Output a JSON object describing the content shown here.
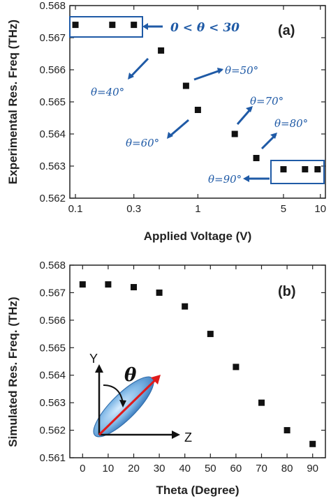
{
  "chart_data": [
    {
      "type": "scatter",
      "panel_label": "(a)",
      "xlabel": "Applied Voltage (V)",
      "ylabel": "Experimental Res. Freq (THz)",
      "xscale": "log",
      "xlim": [
        0.09,
        11
      ],
      "ylim": [
        0.562,
        0.568
      ],
      "xticks": [
        0.1,
        0.3,
        1,
        5,
        10
      ],
      "xtick_labels": [
        "0.1",
        "0.3",
        "1",
        "5",
        "10"
      ],
      "yticks": [
        0.562,
        0.563,
        0.564,
        0.565,
        0.566,
        0.567,
        0.568
      ],
      "ytick_labels": [
        "0.562",
        "0.563",
        "0.564",
        "0.565",
        "0.566",
        "0.567",
        "0.568"
      ],
      "x": [
        0.1,
        0.2,
        0.3,
        0.5,
        0.8,
        1.0,
        2.0,
        3.0,
        5.0,
        7.5,
        9.5
      ],
      "y": [
        0.5674,
        0.5674,
        0.5674,
        0.5666,
        0.5655,
        0.56475,
        0.564,
        0.56325,
        0.5629,
        0.5629,
        0.5629
      ],
      "annotations": [
        "0 < θ < 30",
        "θ=50°",
        "θ=40°",
        "θ=60°",
        "θ=70°",
        "θ=80°",
        "θ=90°"
      ],
      "marker_color": "#111111",
      "annotation_color": "#1f5aa6"
    },
    {
      "type": "scatter",
      "panel_label": "(b)",
      "xlabel": "Theta (Degree)",
      "ylabel": "Simulated Res. Freq. (THz)",
      "xlim": [
        -5,
        95
      ],
      "ylim": [
        0.561,
        0.568
      ],
      "xticks": [
        0,
        10,
        20,
        30,
        40,
        50,
        60,
        70,
        80,
        90
      ],
      "xtick_labels": [
        "0",
        "10",
        "20",
        "30",
        "40",
        "50",
        "60",
        "70",
        "80",
        "90"
      ],
      "yticks": [
        0.561,
        0.562,
        0.563,
        0.564,
        0.565,
        0.566,
        0.567,
        0.568
      ],
      "ytick_labels": [
        "0.561",
        "0.562",
        "0.563",
        "0.564",
        "0.565",
        "0.566",
        "0.567",
        "0.568"
      ],
      "x": [
        0,
        10,
        20,
        30,
        40,
        50,
        60,
        70,
        80,
        90
      ],
      "y": [
        0.5673,
        0.5673,
        0.5672,
        0.567,
        0.5665,
        0.5655,
        0.5643,
        0.563,
        0.562,
        0.5615
      ],
      "inset_labels": {
        "y_axis": "Y",
        "z_axis": "Z",
        "angle": "θ"
      },
      "marker_color": "#111111"
    }
  ]
}
